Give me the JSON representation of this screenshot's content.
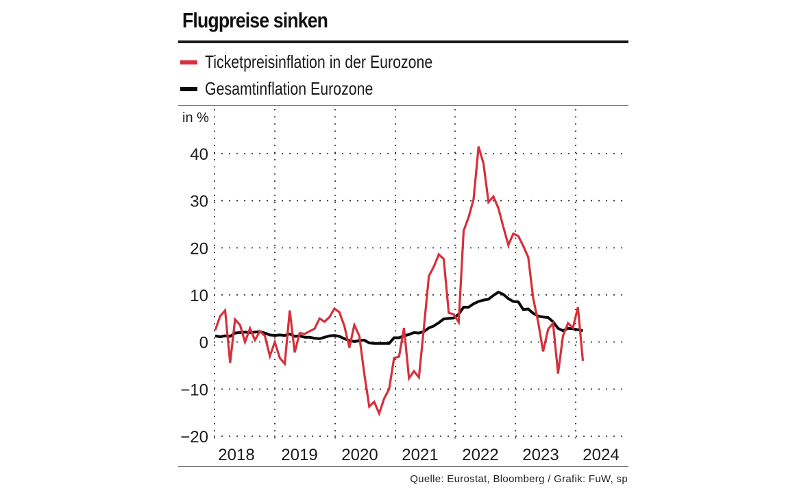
{
  "title": "Flugpreise sinken",
  "legend": [
    {
      "label": "Ticketpreisinflation in der Eurozone",
      "color": "#d5303b"
    },
    {
      "label": "Gesamtinflation Eurozone",
      "color": "#0a0a0a"
    }
  ],
  "source": "Quelle: Eurostat, Bloomberg / Grafik: FuW, sp",
  "chart_data": {
    "type": "line",
    "title": "Flugpreise sinken",
    "xlabel": "",
    "ylabel": "in %",
    "ylim": [
      -20,
      40
    ],
    "yticks": [
      40,
      30,
      20,
      10,
      0,
      -10,
      -20
    ],
    "ytick_labels": [
      "40",
      "30",
      "20",
      "10",
      "0",
      "−10",
      "−20"
    ],
    "xticks": [
      "2018",
      "2019",
      "2020",
      "2021",
      "2022",
      "2023",
      "2024"
    ],
    "x_start": "2018-01",
    "x_frequency": "monthly",
    "grid": "dotted",
    "legend_position": "top-left",
    "series": [
      {
        "name": "Ticketpreisinflation in der Eurozone",
        "color": "#d5303b",
        "values": [
          2.5,
          5.5,
          6.7,
          -4.4,
          4.8,
          3.6,
          0.0,
          2.9,
          0.4,
          2.3,
          1.3,
          -3.0,
          0.0,
          -3.4,
          -4.6,
          6.7,
          -2.2,
          1.9,
          1.7,
          2.3,
          2.8,
          5.0,
          4.3,
          5.3,
          7.1,
          6.3,
          3.4,
          -1.2,
          3.6,
          1.3,
          -6.7,
          -13.7,
          -12.7,
          -15.2,
          -12.0,
          -10.0,
          -3.4,
          -3.1,
          3.0,
          -7.7,
          -6.2,
          -7.5,
          3.0,
          14.0,
          16.0,
          18.6,
          17.6,
          6.2,
          5.9,
          4.2,
          23.6,
          26.5,
          30.3,
          41.5,
          37.9,
          29.7,
          30.9,
          28.4,
          24.4,
          20.6,
          23.0,
          22.5,
          20.4,
          18.0,
          9.3,
          4.2,
          -2.0,
          2.7,
          4.0,
          -6.7,
          1.3,
          4.0,
          3.0,
          7.4,
          -4.0
        ]
      },
      {
        "name": "Gesamtinflation Eurozone",
        "color": "#0a0a0a",
        "values": [
          1.3,
          1.1,
          1.3,
          1.2,
          1.9,
          2.0,
          2.1,
          2.0,
          2.1,
          2.2,
          1.9,
          1.5,
          1.4,
          1.5,
          1.4,
          1.7,
          1.2,
          1.3,
          1.0,
          1.0,
          0.8,
          0.7,
          1.0,
          1.3,
          1.4,
          1.2,
          0.7,
          0.3,
          0.1,
          0.3,
          0.4,
          -0.2,
          -0.3,
          -0.3,
          -0.3,
          -0.3,
          0.9,
          0.9,
          1.3,
          1.6,
          2.0,
          1.9,
          2.2,
          3.0,
          3.4,
          4.1,
          4.9,
          5.0,
          5.1,
          5.9,
          7.4,
          7.4,
          8.1,
          8.6,
          8.9,
          9.1,
          9.9,
          10.6,
          10.1,
          9.2,
          8.6,
          8.5,
          6.9,
          7.0,
          6.1,
          5.5,
          5.3,
          5.2,
          4.3,
          2.9,
          2.4,
          2.9,
          2.8,
          2.6,
          2.4
        ]
      }
    ]
  }
}
